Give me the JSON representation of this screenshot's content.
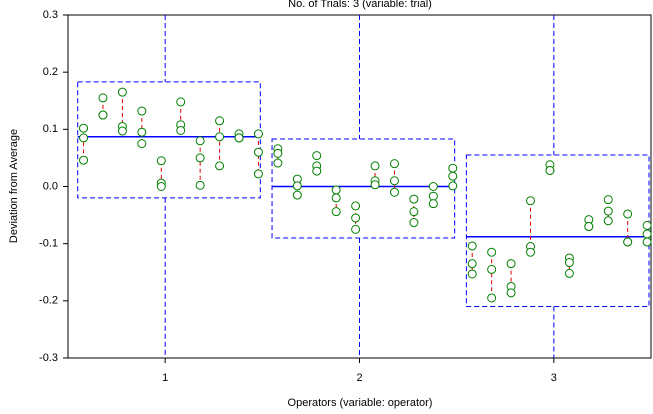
{
  "chart_data": {
    "type": "gage-range",
    "title": "No. of Trials: 3 (variable: trial)",
    "x_label": "Operators (variable: operator)",
    "y_label": "Deviation from Average",
    "categories": [
      "1",
      "2",
      "3"
    ],
    "trials": [
      [
        [
          0.102,
          0.085,
          0.046
        ],
        [
          0.155,
          0.125,
          0.125
        ],
        [
          0.165,
          0.105,
          0.097
        ],
        [
          0.132,
          0.095,
          0.075
        ],
        [
          0.045,
          0.006,
          0
        ],
        [
          0.148,
          0.108,
          0.098
        ],
        [
          0.08,
          0.05,
          0.002
        ],
        [
          0.115,
          0.087,
          0.036
        ],
        [
          0.092,
          0.085,
          0.085
        ],
        [
          0.092,
          0.06,
          0.022
        ]
      ],
      [
        [
          0.066,
          0.058,
          0.041
        ],
        [
          0.013,
          0.001,
          -0.015
        ],
        [
          0.054,
          0.036,
          0.027
        ],
        [
          -0.006,
          -0.02,
          -0.044
        ],
        [
          -0.034,
          -0.055,
          -0.075
        ],
        [
          0.036,
          0.01,
          0.003
        ],
        [
          0.04,
          0.01,
          -0.01
        ],
        [
          -0.022,
          -0.044,
          -0.063
        ],
        [
          0,
          -0.017,
          -0.03
        ],
        [
          0.032,
          0.018,
          0.001
        ]
      ],
      [
        [
          -0.104,
          -0.135,
          -0.153
        ],
        [
          -0.115,
          -0.145,
          -0.195
        ],
        [
          -0.135,
          -0.175,
          -0.186
        ],
        [
          -0.025,
          -0.105,
          -0.115
        ],
        [
          0.038,
          0.028,
          0.028
        ],
        [
          -0.125,
          -0.133,
          -0.152
        ],
        [
          -0.058,
          -0.07,
          -0.07
        ],
        [
          -0.023,
          -0.043,
          -0.06
        ],
        [
          -0.048,
          -0.097,
          -0.097
        ],
        [
          -0.068,
          -0.083,
          -0.097
        ]
      ]
    ],
    "means": [
      0.087,
      0,
      -0.088
    ],
    "box_low": [
      -0.02,
      -0.09,
      -0.21
    ],
    "box_high": [
      0.183,
      0.083,
      0.055
    ],
    "point_color": "#008000",
    "range_color": "#e00000",
    "mean_color": "#0000ff",
    "box_color": "#0000ff",
    "ylim": [
      -0.3,
      0.3
    ],
    "yticks": [
      0.3,
      0.2,
      0.1,
      {
        "value": 0,
        "label": "0.0"
      },
      -0.1,
      -0.2,
      -0.3
    ]
  }
}
